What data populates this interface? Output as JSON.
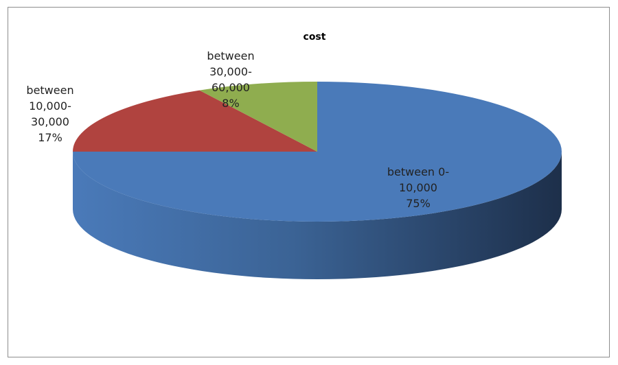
{
  "chart_data": {
    "type": "pie",
    "title": "cost",
    "style": "3d",
    "series": [
      {
        "values": [
          75,
          17,
          8
        ]
      }
    ],
    "slices": [
      {
        "label": [
          "between 0-",
          "10,000",
          "75%"
        ],
        "value": 75,
        "color": "#4a7ab9"
      },
      {
        "label": [
          "between",
          "10,000-",
          "30,000",
          "17%"
        ],
        "value": 17,
        "color": "#b0433f"
      },
      {
        "label": [
          "between",
          "30,000-",
          "60,000",
          "8%"
        ],
        "value": 8,
        "color": "#8fad4f"
      }
    ]
  }
}
